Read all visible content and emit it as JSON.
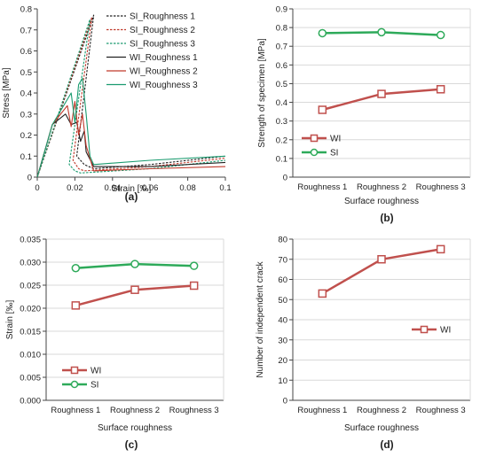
{
  "chart_data": [
    {
      "type": "line",
      "panel_label": "(a)",
      "xlabel": "Strain [‰]",
      "ylabel": "Stress [MPa]",
      "xlim": [
        0,
        0.1
      ],
      "ylim": [
        0,
        0.8
      ],
      "xticks": [
        "0",
        "0.02",
        "0.04",
        "0.06",
        "0.08",
        "0.1"
      ],
      "yticks": [
        "0",
        "0.1",
        "0.2",
        "0.3",
        "0.4",
        "0.5",
        "0.6",
        "0.7",
        "0.8"
      ],
      "legend_position": "top-right",
      "series": [
        {
          "name": "SI_Roughness 1",
          "color": "#222222",
          "dash": true,
          "points": [
            [
              0,
              0
            ],
            [
              0.03,
              0.77
            ],
            [
              0.021,
              0.1
            ],
            [
              0.025,
              0.06
            ],
            [
              0.03,
              0.04
            ],
            [
              0.06,
              0.06
            ],
            [
              0.1,
              0.1
            ]
          ]
        },
        {
          "name": "SI_Roughness 2",
          "color": "#c0392b",
          "dash": true,
          "points": [
            [
              0,
              0
            ],
            [
              0.029,
              0.76
            ],
            [
              0.019,
              0.08
            ],
            [
              0.022,
              0.04
            ],
            [
              0.025,
              0.03
            ],
            [
              0.06,
              0.05
            ],
            [
              0.1,
              0.09
            ]
          ]
        },
        {
          "name": "SI_Roughness 3",
          "color": "#1a9b6f",
          "dash": true,
          "points": [
            [
              0,
              0
            ],
            [
              0.028,
              0.75
            ],
            [
              0.017,
              0.06
            ],
            [
              0.02,
              0.03
            ],
            [
              0.023,
              0.02
            ],
            [
              0.06,
              0.04
            ],
            [
              0.1,
              0.08
            ]
          ]
        },
        {
          "name": "WI_Roughness 1",
          "color": "#222222",
          "dash": false,
          "points": [
            [
              0,
              0
            ],
            [
              0.008,
              0.25
            ],
            [
              0.015,
              0.3
            ],
            [
              0.018,
              0.25
            ],
            [
              0.021,
              0.26
            ],
            [
              0.023,
              0.17
            ],
            [
              0.025,
              0.22
            ],
            [
              0.026,
              0.12
            ],
            [
              0.03,
              0.05
            ],
            [
              0.06,
              0.05
            ],
            [
              0.1,
              0.07
            ]
          ]
        },
        {
          "name": "WI_Roughness 2",
          "color": "#c0392b",
          "dash": false,
          "points": [
            [
              0,
              0
            ],
            [
              0.008,
              0.25
            ],
            [
              0.016,
              0.34
            ],
            [
              0.018,
              0.24
            ],
            [
              0.02,
              0.36
            ],
            [
              0.022,
              0.2
            ],
            [
              0.024,
              0.3
            ],
            [
              0.026,
              0.15
            ],
            [
              0.03,
              0.03
            ],
            [
              0.06,
              0.04
            ],
            [
              0.1,
              0.05
            ]
          ]
        },
        {
          "name": "WI_Roughness 3",
          "color": "#1a9b6f",
          "dash": false,
          "points": [
            [
              0,
              0
            ],
            [
              0.008,
              0.25
            ],
            [
              0.018,
              0.4
            ],
            [
              0.02,
              0.26
            ],
            [
              0.022,
              0.44
            ],
            [
              0.024,
              0.47
            ],
            [
              0.026,
              0.3
            ],
            [
              0.028,
              0.1
            ],
            [
              0.03,
              0.06
            ],
            [
              0.06,
              0.08
            ],
            [
              0.1,
              0.1
            ]
          ]
        }
      ]
    },
    {
      "type": "line",
      "panel_label": "(b)",
      "xlabel": "Surface roughness",
      "ylabel": "Strength of specimen [MPa]",
      "categories": [
        "Roughness 1",
        "Roughness 2",
        "Roughness 3"
      ],
      "ylim": [
        0,
        0.9
      ],
      "yticks": [
        "0",
        "0.1",
        "0.2",
        "0.3",
        "0.4",
        "0.5",
        "0.6",
        "0.7",
        "0.8",
        "0.9"
      ],
      "legend_position": "middle-left",
      "series": [
        {
          "name": "WI",
          "color": "#c0504d",
          "marker": "square",
          "values": [
            0.36,
            0.445,
            0.47
          ]
        },
        {
          "name": "SI",
          "color": "#2eaa5a",
          "marker": "circle",
          "values": [
            0.77,
            0.775,
            0.76
          ]
        }
      ]
    },
    {
      "type": "line",
      "panel_label": "(c)",
      "xlabel": "Surface roughness",
      "ylabel": "Strain [‰]",
      "categories": [
        "Roughness 1",
        "Roughness 2",
        "Roughness 3"
      ],
      "ylim": [
        0,
        0.035
      ],
      "yticks": [
        "0.000",
        "0.005",
        "0.010",
        "0.015",
        "0.020",
        "0.025",
        "0.030",
        "0.035"
      ],
      "legend_position": "bottom-left",
      "series": [
        {
          "name": "WI",
          "color": "#c0504d",
          "marker": "square",
          "values": [
            0.0206,
            0.024,
            0.0249
          ]
        },
        {
          "name": "SI",
          "color": "#2eaa5a",
          "marker": "circle",
          "values": [
            0.0287,
            0.0296,
            0.0292
          ]
        }
      ]
    },
    {
      "type": "line",
      "panel_label": "(d)",
      "xlabel": "Surface roughness",
      "ylabel": "Number of independent crack",
      "categories": [
        "Roughness 1",
        "Roughness 2",
        "Roughness 3"
      ],
      "ylim": [
        0,
        80
      ],
      "yticks": [
        "0",
        "10",
        "20",
        "30",
        "40",
        "50",
        "60",
        "70",
        "80"
      ],
      "legend_position": "center-right",
      "series": [
        {
          "name": "WI",
          "color": "#c0504d",
          "marker": "square",
          "values": [
            53,
            70,
            75
          ]
        }
      ]
    }
  ]
}
